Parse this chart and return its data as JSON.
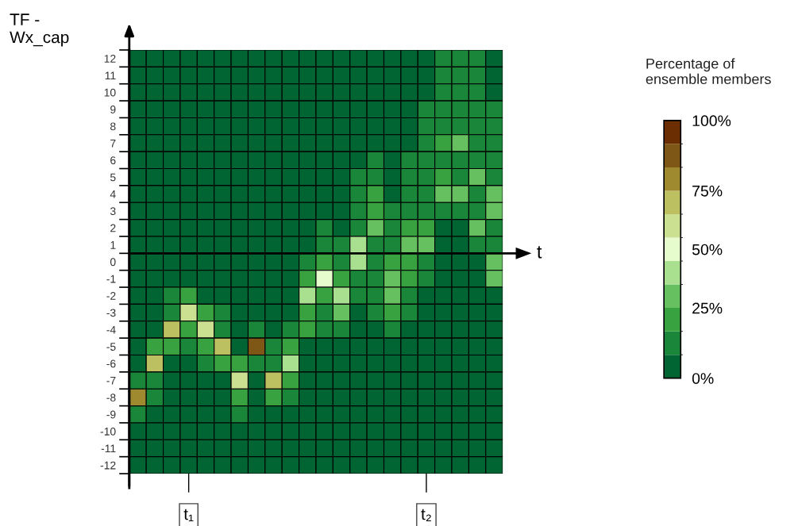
{
  "chart_data": {
    "type": "heatmap",
    "ylabel": "TF -\nWx_cap",
    "xlabel": "t",
    "clabel": "Percentage of\nensemble members",
    "categories": [
      null,
      null,
      null,
      "t₁",
      null,
      null,
      null,
      null,
      null,
      null,
      null,
      null,
      null,
      null,
      null,
      null,
      null,
      "t₂",
      null,
      null,
      null,
      null
    ],
    "y_categories": [
      "12",
      "11",
      "10",
      "9",
      "8",
      "7",
      "6",
      "5",
      "4",
      "3",
      "2",
      "1",
      "0",
      "-1",
      "-2",
      "-3",
      "-4",
      "-5",
      "-6",
      "-7",
      "-8",
      "-9",
      "-10",
      "-11",
      "-12"
    ],
    "cells": [
      [
        0,
        0,
        0,
        0,
        0,
        0,
        0,
        0,
        0,
        0,
        0,
        0,
        0,
        0,
        0,
        0,
        0,
        0,
        10,
        10,
        10,
        0
      ],
      [
        0,
        0,
        0,
        0,
        0,
        0,
        0,
        0,
        0,
        0,
        0,
        0,
        0,
        0,
        0,
        0,
        0,
        0,
        10,
        10,
        10,
        0
      ],
      [
        0,
        0,
        0,
        0,
        0,
        0,
        0,
        0,
        0,
        0,
        0,
        0,
        0,
        0,
        0,
        0,
        0,
        0,
        10,
        10,
        10,
        0
      ],
      [
        0,
        0,
        0,
        0,
        0,
        0,
        0,
        0,
        0,
        0,
        0,
        0,
        0,
        0,
        0,
        0,
        0,
        10,
        10,
        10,
        10,
        10
      ],
      [
        0,
        0,
        0,
        0,
        0,
        0,
        0,
        0,
        0,
        0,
        0,
        0,
        0,
        0,
        0,
        0,
        0,
        10,
        10,
        10,
        10,
        10
      ],
      [
        0,
        0,
        0,
        0,
        0,
        0,
        0,
        0,
        0,
        0,
        0,
        0,
        0,
        0,
        0,
        0,
        0,
        10,
        20,
        30,
        10,
        10
      ],
      [
        0,
        0,
        0,
        0,
        0,
        0,
        0,
        0,
        0,
        0,
        0,
        0,
        0,
        0,
        10,
        0,
        10,
        10,
        10,
        10,
        10,
        10
      ],
      [
        0,
        0,
        0,
        0,
        0,
        0,
        0,
        0,
        0,
        0,
        0,
        0,
        0,
        10,
        10,
        0,
        10,
        10,
        20,
        10,
        30,
        10
      ],
      [
        0,
        0,
        0,
        0,
        0,
        0,
        0,
        0,
        0,
        0,
        0,
        0,
        0,
        10,
        20,
        0,
        10,
        10,
        30,
        30,
        10,
        30
      ],
      [
        0,
        0,
        0,
        0,
        0,
        0,
        0,
        0,
        0,
        0,
        0,
        0,
        0,
        10,
        20,
        10,
        10,
        10,
        10,
        10,
        10,
        30
      ],
      [
        0,
        0,
        0,
        0,
        0,
        0,
        0,
        0,
        0,
        0,
        0,
        10,
        0,
        10,
        30,
        10,
        20,
        20,
        0,
        0,
        30,
        10
      ],
      [
        0,
        0,
        0,
        0,
        0,
        0,
        0,
        0,
        0,
        0,
        0,
        10,
        10,
        40,
        10,
        10,
        30,
        30,
        0,
        0,
        10,
        10
      ],
      [
        0,
        0,
        0,
        0,
        0,
        0,
        0,
        0,
        0,
        0,
        10,
        20,
        10,
        40,
        10,
        20,
        20,
        10,
        0,
        0,
        0,
        30
      ],
      [
        0,
        0,
        0,
        0,
        0,
        0,
        0,
        0,
        0,
        0,
        20,
        50,
        20,
        10,
        10,
        30,
        20,
        10,
        0,
        0,
        0,
        30
      ],
      [
        0,
        0,
        10,
        20,
        0,
        0,
        0,
        0,
        0,
        0,
        40,
        20,
        40,
        10,
        10,
        30,
        10,
        0,
        0,
        0,
        0,
        0
      ],
      [
        0,
        0,
        10,
        60,
        20,
        10,
        0,
        0,
        0,
        0,
        20,
        10,
        30,
        0,
        10,
        20,
        10,
        0,
        0,
        0,
        0,
        0
      ],
      [
        0,
        0,
        70,
        20,
        60,
        10,
        0,
        10,
        0,
        10,
        20,
        10,
        10,
        0,
        0,
        10,
        0,
        0,
        0,
        0,
        0,
        0
      ],
      [
        0,
        20,
        20,
        10,
        20,
        70,
        0,
        90,
        10,
        20,
        0,
        0,
        0,
        0,
        0,
        0,
        0,
        0,
        0,
        0,
        0,
        0
      ],
      [
        0,
        70,
        0,
        0,
        10,
        20,
        20,
        10,
        10,
        40,
        0,
        0,
        0,
        0,
        0,
        0,
        0,
        0,
        0,
        0,
        0,
        0
      ],
      [
        10,
        10,
        0,
        0,
        0,
        0,
        60,
        0,
        70,
        20,
        0,
        0,
        0,
        0,
        0,
        0,
        0,
        0,
        0,
        0,
        0,
        0
      ],
      [
        80,
        10,
        0,
        0,
        0,
        0,
        20,
        0,
        20,
        10,
        0,
        0,
        0,
        0,
        0,
        0,
        0,
        0,
        0,
        0,
        0,
        0
      ],
      [
        10,
        0,
        0,
        0,
        0,
        0,
        10,
        0,
        0,
        0,
        0,
        0,
        0,
        0,
        0,
        0,
        0,
        0,
        0,
        0,
        0,
        0
      ],
      [
        0,
        0,
        0,
        0,
        0,
        0,
        0,
        0,
        0,
        0,
        0,
        0,
        0,
        0,
        0,
        0,
        0,
        0,
        0,
        0,
        0,
        0
      ],
      [
        0,
        0,
        0,
        0,
        0,
        0,
        0,
        0,
        0,
        0,
        0,
        0,
        0,
        0,
        0,
        0,
        0,
        0,
        0,
        0,
        0,
        0
      ],
      [
        0,
        0,
        0,
        0,
        0,
        0,
        0,
        0,
        0,
        0,
        0,
        0,
        0,
        0,
        0,
        0,
        0,
        0,
        0,
        0,
        0,
        0
      ]
    ],
    "colors": [
      "#006533",
      "#1a8639",
      "#38a140",
      "#66c060",
      "#a8e090",
      "#e6fccc",
      "#cbe091",
      "#bcc060",
      "#a08a30",
      "#7e5616",
      "#6a2e02"
    ],
    "clim": [
      0,
      100
    ],
    "cticks": [
      {
        "value": 0,
        "label": "0%"
      },
      {
        "value": 25,
        "label": "25%"
      },
      {
        "value": 50,
        "label": "50%"
      },
      {
        "value": 75,
        "label": "75%"
      },
      {
        "value": 100,
        "label": "100%"
      }
    ]
  }
}
